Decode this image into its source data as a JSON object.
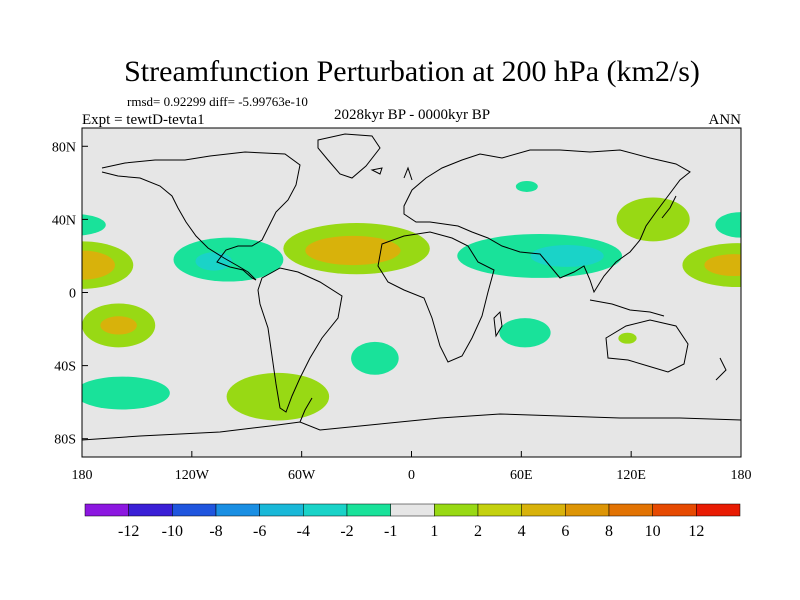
{
  "chart_data": {
    "type": "contour-map",
    "title": "Streamfunction Perturbation at 200 hPa (km2/s)",
    "stats": "rmsd= 0.92299 diff= -5.99763e-10",
    "left_label": "Expt = tewtD-tevta1",
    "center_label": "2028kyr BP - 0000kyr BP",
    "right_label": "ANN",
    "xlim": [
      -180,
      180
    ],
    "ylim": [
      -90,
      90
    ],
    "x_ticks": [
      {
        "value": -180,
        "label": "180"
      },
      {
        "value": -120,
        "label": "120W"
      },
      {
        "value": -60,
        "label": "60W"
      },
      {
        "value": 0,
        "label": "0"
      },
      {
        "value": 60,
        "label": "60E"
      },
      {
        "value": 120,
        "label": "120E"
      },
      {
        "value": 180,
        "label": "180"
      }
    ],
    "y_ticks": [
      {
        "value": 80,
        "label": "80N"
      },
      {
        "value": 40,
        "label": "40N"
      },
      {
        "value": 0,
        "label": "0"
      },
      {
        "value": -40,
        "label": "40S"
      },
      {
        "value": -80,
        "label": "80S"
      }
    ],
    "colorbar": {
      "colors": [
        "#8c17e0",
        "#3a1fd6",
        "#1f55de",
        "#1a8fe3",
        "#19b8d8",
        "#1ad3c8",
        "#19e29a",
        "#e6e6e6",
        "#98d914",
        "#c4d10f",
        "#d8b20b",
        "#dd9506",
        "#e27303",
        "#e64a02",
        "#e81b03"
      ],
      "labels": [
        "-12",
        "-10",
        "-8",
        "-6",
        "-4",
        "-2",
        "-1",
        "1",
        "2",
        "4",
        "6",
        "8",
        "10",
        "12"
      ]
    },
    "blobs": [
      {
        "name": "n-pacific-west-edge",
        "lon": -185,
        "lat": 37,
        "rlon": 18,
        "rlat": 6,
        "level": -1
      },
      {
        "name": "n-pacific-east-edge",
        "lon": 180,
        "lat": 37,
        "rlon": 14,
        "rlat": 7,
        "level": -1
      },
      {
        "name": "trop-pacific-west",
        "lon": -180,
        "lat": 15,
        "rlon": 28,
        "rlat": 13,
        "level": 2
      },
      {
        "name": "trop-pacific-west-core",
        "lon": -180,
        "lat": 15,
        "rlon": 18,
        "rlat": 8,
        "level": 4
      },
      {
        "name": "trop-pacific-east",
        "lon": 178,
        "lat": 15,
        "rlon": 30,
        "rlat": 12,
        "level": 2
      },
      {
        "name": "trop-pacific-east-core",
        "lon": 176,
        "lat": 15,
        "rlon": 16,
        "rlat": 6,
        "level": 4
      },
      {
        "name": "central-america",
        "lon": -100,
        "lat": 18,
        "rlon": 30,
        "rlat": 12,
        "level": -1
      },
      {
        "name": "central-america-core",
        "lon": -108,
        "lat": 17,
        "rlon": 10,
        "rlat": 5,
        "level": -2
      },
      {
        "name": "atlantic",
        "lon": -30,
        "lat": 24,
        "rlon": 40,
        "rlat": 14,
        "level": 2
      },
      {
        "name": "atlantic-core",
        "lon": -32,
        "lat": 23,
        "rlon": 26,
        "rlat": 8,
        "level": 4
      },
      {
        "name": "arabia-asia",
        "lon": 70,
        "lat": 20,
        "rlon": 45,
        "rlat": 12,
        "level": -1
      },
      {
        "name": "asia-core",
        "lon": 85,
        "lat": 20,
        "rlon": 20,
        "rlat": 6,
        "level": -2
      },
      {
        "name": "siberia",
        "lon": 63,
        "lat": 58,
        "rlon": 6,
        "rlat": 3,
        "level": -1
      },
      {
        "name": "east-asia",
        "lon": 132,
        "lat": 40,
        "rlon": 20,
        "rlat": 12,
        "level": 2
      },
      {
        "name": "n-pacific-west-mid",
        "lon": -160,
        "lat": -18,
        "rlon": 20,
        "rlat": 12,
        "level": 2
      },
      {
        "name": "n-pacific-west-mid-core",
        "lon": -160,
        "lat": -18,
        "rlon": 10,
        "rlat": 5,
        "level": 4
      },
      {
        "name": "s-atlantic",
        "lon": -20,
        "lat": -36,
        "rlon": 13,
        "rlat": 9,
        "level": -1
      },
      {
        "name": "indian-ocean",
        "lon": 62,
        "lat": -22,
        "rlon": 14,
        "rlat": 8,
        "level": -1
      },
      {
        "name": "australia",
        "lon": 118,
        "lat": -25,
        "rlon": 5,
        "rlat": 3,
        "level": 2
      },
      {
        "name": "s-pacific-west",
        "lon": -158,
        "lat": -55,
        "rlon": 26,
        "rlat": 9,
        "level": -1
      },
      {
        "name": "south-america-tip",
        "lon": -73,
        "lat": -57,
        "rlon": 28,
        "rlat": 13,
        "level": 2
      }
    ]
  }
}
